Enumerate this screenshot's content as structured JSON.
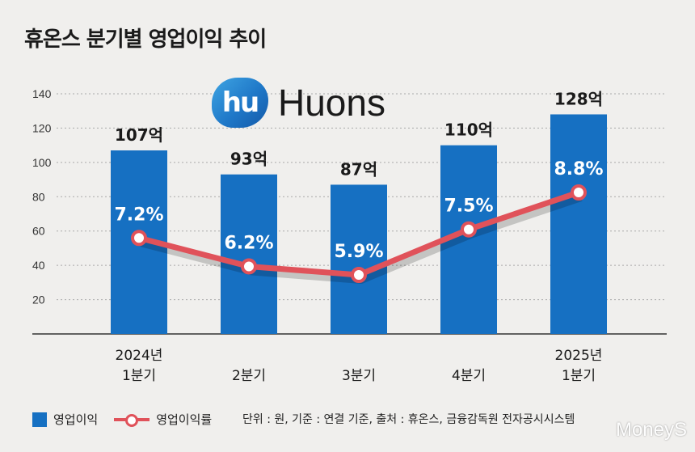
{
  "title": "휴온스 분기별 영업이익 추이",
  "logo": {
    "mark": "hu",
    "text": "Huons"
  },
  "chart_data": {
    "type": "bar",
    "categories": [
      [
        "2024년",
        "1분기"
      ],
      [
        "",
        "2분기"
      ],
      [
        "",
        "3분기"
      ],
      [
        "",
        "4분기"
      ],
      [
        "2025년",
        "1분기"
      ]
    ],
    "y_ticks": [
      20,
      40,
      60,
      80,
      100,
      120,
      140
    ],
    "ylim": [
      0,
      140
    ],
    "grid": true,
    "series": [
      {
        "name": "영업이익",
        "type": "bar",
        "color": "#1670c2",
        "values": [
          107,
          93,
          87,
          110,
          128
        ],
        "labels": [
          "107억",
          "93억",
          "87억",
          "110억",
          "128억"
        ]
      },
      {
        "name": "영업이익률",
        "type": "line",
        "color": "#e0525a",
        "values": [
          7.2,
          6.2,
          5.9,
          7.5,
          8.8
        ],
        "labels": [
          "7.2%",
          "6.2%",
          "5.9%",
          "7.5%",
          "8.8%"
        ]
      }
    ]
  },
  "legend": {
    "bar_label": "영업이익",
    "line_label": "영업이익률"
  },
  "source": "단위 : 원, 기준 : 연결 기준, 출처 : 휴온스, 금융감독원 전자공시시스템",
  "watermark": "MoneyS"
}
